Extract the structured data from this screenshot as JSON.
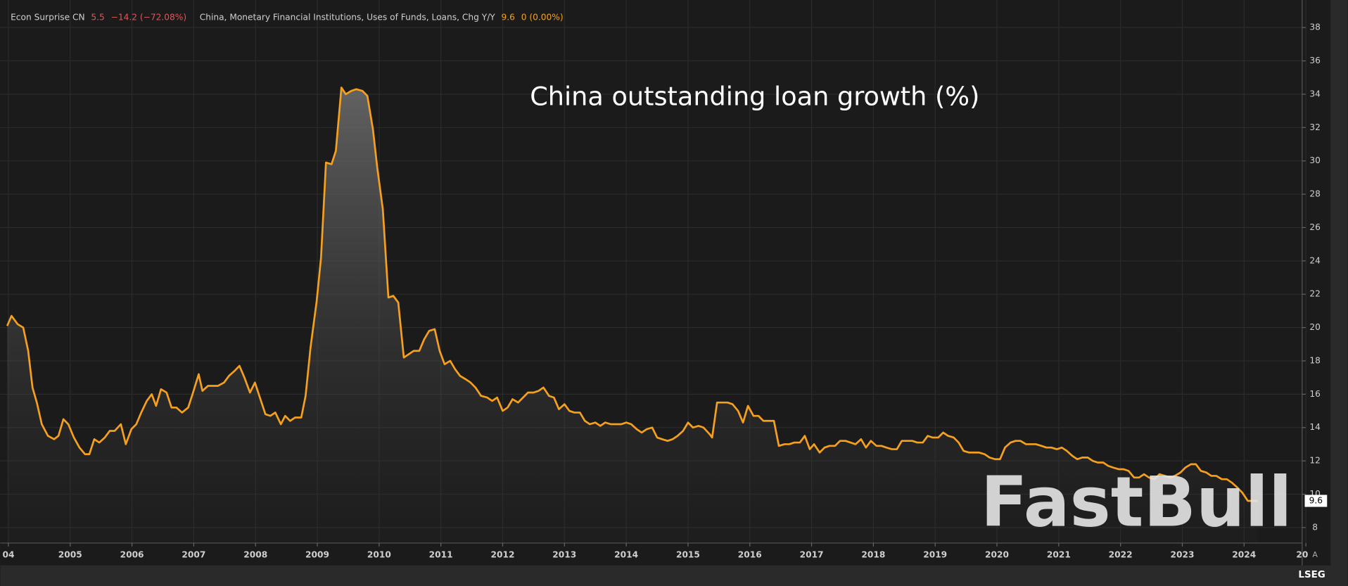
{
  "chart_data": {
    "type": "line",
    "title": "China outstanding loan growth (%)",
    "other_series": [
      {
        "name": "Econ Surprise CN",
        "color": "#e05656",
        "last_value": 5.5,
        "change_label": "−14.2 (−72.08%)"
      }
    ],
    "series": [
      {
        "name": "China, Monetary Financial Institutions, Uses of Funds, Loans, Chg Y/Y",
        "color": "#f5a01e",
        "last_value": 9.6,
        "change_label": "0 (0.00%)",
        "values": [
          20.1,
          20.7,
          20.2,
          20.0,
          18.6,
          16.4,
          15.5,
          14.2,
          13.5,
          13.3,
          13.5,
          14.5,
          14.2,
          13.4,
          12.8,
          12.4,
          12.4,
          13.3,
          13.1,
          13.4,
          13.8,
          13.8,
          14.2,
          13.0,
          13.9,
          14.2,
          14.9,
          15.6,
          16.0,
          15.3,
          16.3,
          16.1,
          15.2,
          15.2,
          14.9,
          15.2,
          16.0,
          17.2,
          16.2,
          16.5,
          16.5,
          16.7,
          17.1,
          17.4,
          17.7,
          17.0,
          16.1,
          16.7,
          15.8,
          14.8,
          14.7,
          14.9,
          14.2,
          14.7,
          14.4,
          14.6,
          14.6,
          15.9,
          18.8,
          21.6,
          24.2,
          29.9,
          29.8,
          30.6,
          34.4,
          34.0,
          34.2,
          34.3,
          34.2,
          33.9,
          31.9,
          29.6,
          27.1,
          21.8,
          21.9,
          21.5,
          18.2,
          18.4,
          18.6,
          18.6,
          19.3,
          19.8,
          19.9,
          18.6,
          17.8,
          18.0,
          17.5,
          17.1,
          16.9,
          16.7,
          16.4,
          15.9,
          15.8,
          15.6,
          15.8,
          15.0,
          15.2,
          15.7,
          15.5,
          15.8,
          16.1,
          16.1,
          16.2,
          16.4,
          15.9,
          15.8,
          15.1,
          15.4,
          15.0,
          14.9,
          14.9,
          14.4,
          14.2,
          14.3,
          14.1,
          14.3,
          14.2,
          14.2,
          14.2,
          14.3,
          14.2,
          13.9,
          13.7,
          13.9,
          14.0,
          13.4,
          13.3,
          13.2,
          13.3,
          13.5,
          13.8,
          14.3,
          14.0,
          14.1,
          14.0,
          13.6,
          13.4,
          15.5,
          15.5,
          15.5,
          15.4,
          15.0,
          14.3,
          15.3,
          14.7,
          14.7,
          14.4,
          14.4,
          14.4,
          12.9,
          13.0,
          13.0,
          13.1,
          13.1,
          13.5,
          12.7,
          13.0,
          12.5,
          12.8,
          12.9,
          12.9,
          13.2,
          13.2,
          13.1,
          13.0,
          13.3,
          12.8,
          13.2,
          12.9,
          12.9,
          12.8,
          12.7,
          12.7,
          13.2,
          13.2,
          13.2,
          13.1,
          13.1,
          13.5,
          13.4,
          13.4,
          13.7,
          13.5,
          13.4,
          13.1,
          12.6,
          12.5,
          12.5,
          12.5,
          12.4,
          12.2,
          12.1,
          12.1,
          12.8,
          13.1,
          13.2,
          13.2,
          13.0,
          13.0,
          13.0,
          12.9,
          12.8,
          12.8,
          12.7,
          12.8,
          12.6,
          12.3,
          12.1,
          12.2,
          12.2,
          12.0,
          11.9,
          11.9,
          11.7,
          11.6,
          11.5,
          11.5,
          11.4,
          11.0,
          11.0,
          11.2,
          11.0,
          10.9,
          11.2,
          11.1,
          11.0,
          11.1,
          11.3,
          11.6,
          11.8,
          11.8,
          11.4,
          11.3,
          11.1,
          11.1,
          10.9,
          10.9,
          10.7,
          10.4,
          10.1,
          9.6,
          9.6,
          9.6
        ]
      }
    ],
    "x": [
      2003.98,
      2004.05,
      2004.15,
      2004.24,
      2004.32,
      2004.39,
      2004.46,
      2004.54,
      2004.64,
      2004.74,
      2004.81,
      2004.89,
      2004.97,
      2005.06,
      2005.15,
      2005.24,
      2005.31,
      2005.39,
      2005.47,
      2005.56,
      2005.64,
      2005.72,
      2005.82,
      2005.9,
      2005.99,
      2006.07,
      2006.15,
      2006.24,
      2006.32,
      2006.39,
      2006.47,
      2006.56,
      2006.64,
      2006.72,
      2006.81,
      2006.91,
      2006.98,
      2007.08,
      2007.14,
      2007.23,
      2007.39,
      2007.49,
      2007.57,
      2007.66,
      2007.74,
      2007.82,
      2007.91,
      2007.99,
      2008.07,
      2008.16,
      2008.24,
      2008.32,
      2008.41,
      2008.48,
      2008.56,
      2008.64,
      2008.74,
      2008.81,
      2008.89,
      2008.99,
      2009.06,
      2009.14,
      2009.23,
      2009.3,
      2009.39,
      2009.46,
      2009.55,
      2009.63,
      2009.73,
      2009.81,
      2009.9,
      2009.97,
      2010.06,
      2010.15,
      2010.23,
      2010.31,
      2010.4,
      2010.48,
      2010.56,
      2010.65,
      2010.73,
      2010.81,
      2010.9,
      2010.98,
      2011.06,
      2011.15,
      2011.23,
      2011.31,
      2011.4,
      2011.48,
      2011.56,
      2011.65,
      2011.75,
      2011.83,
      2011.91,
      2012.0,
      2012.08,
      2012.16,
      2012.25,
      2012.33,
      2012.41,
      2012.5,
      2012.58,
      2012.66,
      2012.75,
      2012.83,
      2012.91,
      2013.0,
      2013.08,
      2013.16,
      2013.25,
      2013.33,
      2013.41,
      2013.5,
      2013.58,
      2013.66,
      2013.75,
      2013.83,
      2013.92,
      2014.0,
      2014.08,
      2014.17,
      2014.25,
      2014.33,
      2014.42,
      2014.5,
      2014.58,
      2014.67,
      2014.75,
      2014.83,
      2014.92,
      2015.0,
      2015.08,
      2015.17,
      2015.25,
      2015.35,
      2015.39,
      2015.47,
      2015.56,
      2015.64,
      2015.72,
      2015.81,
      2015.89,
      2015.97,
      2016.06,
      2016.14,
      2016.22,
      2016.31,
      2016.39,
      2016.47,
      2016.56,
      2016.64,
      2016.72,
      2016.81,
      2016.89,
      2016.97,
      2017.04,
      2017.13,
      2017.21,
      2017.29,
      2017.38,
      2017.46,
      2017.55,
      2017.63,
      2017.71,
      2017.8,
      2017.88,
      2017.96,
      2018.05,
      2018.13,
      2018.21,
      2018.3,
      2018.38,
      2018.46,
      2018.55,
      2018.63,
      2018.71,
      2018.8,
      2018.88,
      2018.96,
      2019.05,
      2019.13,
      2019.21,
      2019.3,
      2019.38,
      2019.46,
      2019.55,
      2019.63,
      2019.71,
      2019.8,
      2019.88,
      2019.97,
      2020.05,
      2020.13,
      2020.22,
      2020.3,
      2020.38,
      2020.47,
      2020.55,
      2020.63,
      2020.72,
      2020.8,
      2020.88,
      2020.97,
      2021.05,
      2021.13,
      2021.22,
      2021.3,
      2021.38,
      2021.47,
      2021.55,
      2021.63,
      2021.72,
      2021.8,
      2021.88,
      2021.97,
      2022.05,
      2022.13,
      2022.22,
      2022.3,
      2022.38,
      2022.46,
      2022.55,
      2022.63,
      2022.72,
      2022.8,
      2022.88,
      2022.97,
      2023.05,
      2023.14,
      2023.22,
      2023.3,
      2023.39,
      2023.47,
      2023.55,
      2023.64,
      2023.72,
      2023.8,
      2023.89,
      2023.97,
      2024.06,
      2024.14,
      2024.22
    ],
    "xlim": [
      2003.98,
      2024.94
    ],
    "xticks": [
      {
        "value": 2004,
        "label": "04"
      },
      2005,
      2006,
      2007,
      2008,
      2009,
      2010,
      2011,
      2012,
      2013,
      2014,
      2015,
      2016,
      2017,
      2018,
      2019,
      2020,
      2021,
      2022,
      2023,
      2024,
      {
        "value": 2025,
        "label": "20"
      }
    ],
    "ylim": [
      7.07,
      39.24
    ],
    "yticks": [
      8,
      10,
      12,
      14,
      16,
      18,
      20,
      22,
      24,
      26,
      28,
      30,
      32,
      34,
      36,
      38
    ],
    "grid": true
  },
  "watermark": "FastBull",
  "footer": {
    "logo": "LSEG",
    "button": "A"
  }
}
